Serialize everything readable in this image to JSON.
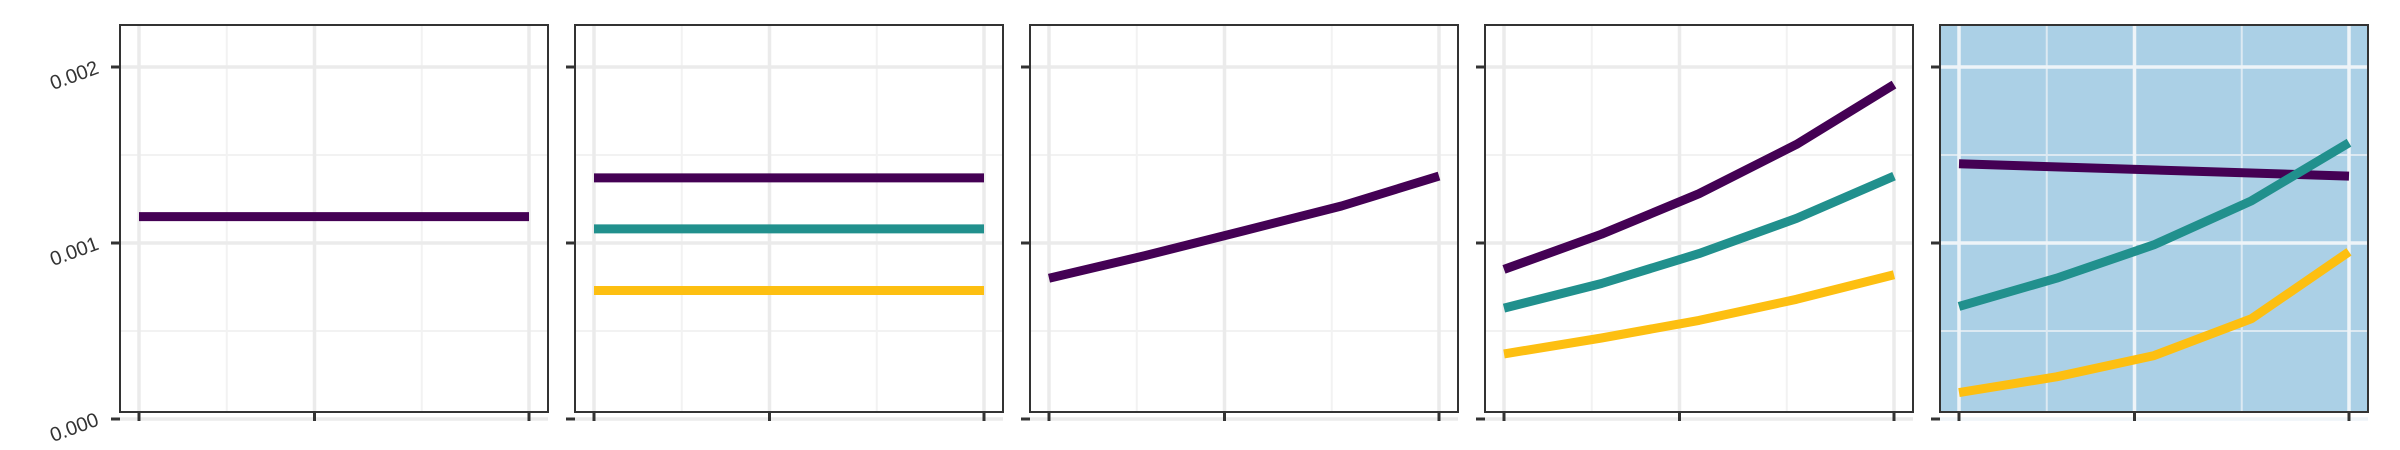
{
  "chart_data": {
    "type": "line",
    "layout": "facets-1x5",
    "xlabel": "",
    "ylabel": "",
    "ylim": [
      0,
      0.002
    ],
    "yticks": [
      "0.000",
      "0.001",
      "0.002"
    ],
    "xlim": [
      0,
      1
    ],
    "xticks": [
      0,
      0.45,
      1
    ],
    "grid": true,
    "legend": "none",
    "series_colors": [
      "#440154",
      "#21908d",
      "#fdbf11"
    ],
    "panels": [
      {
        "background": "#ffffff",
        "series": [
          {
            "color": "#440154",
            "x": [
              0,
              1
            ],
            "y": [
              0.00115,
              0.00115
            ]
          }
        ]
      },
      {
        "background": "#ffffff",
        "series": [
          {
            "color": "#440154",
            "x": [
              0,
              1
            ],
            "y": [
              0.00137,
              0.00137
            ]
          },
          {
            "color": "#21908d",
            "x": [
              0,
              1
            ],
            "y": [
              0.00108,
              0.00108
            ]
          },
          {
            "color": "#fdbf11",
            "x": [
              0,
              1
            ],
            "y": [
              0.00073,
              0.00073
            ]
          }
        ]
      },
      {
        "background": "#ffffff",
        "series": [
          {
            "color": "#440154",
            "x": [
              0,
              0.25,
              0.5,
              0.75,
              1
            ],
            "y": [
              0.0008,
              0.00093,
              0.00107,
              0.00121,
              0.00138
            ]
          }
        ]
      },
      {
        "background": "#ffffff",
        "series": [
          {
            "color": "#440154",
            "x": [
              0,
              0.25,
              0.5,
              0.75,
              1
            ],
            "y": [
              0.00085,
              0.00105,
              0.00128,
              0.00156,
              0.0019
            ]
          },
          {
            "color": "#21908d",
            "x": [
              0,
              0.25,
              0.5,
              0.75,
              1
            ],
            "y": [
              0.00063,
              0.00077,
              0.00094,
              0.00114,
              0.00138
            ]
          },
          {
            "color": "#fdbf11",
            "x": [
              0,
              0.25,
              0.5,
              0.75,
              1
            ],
            "y": [
              0.00037,
              0.00046,
              0.00056,
              0.00068,
              0.00082
            ]
          }
        ]
      },
      {
        "background": "#abd0e6",
        "series": [
          {
            "color": "#440154",
            "x": [
              0,
              1
            ],
            "y": [
              0.00145,
              0.00138
            ]
          },
          {
            "color": "#21908d",
            "x": [
              0,
              0.25,
              0.5,
              0.75,
              1
            ],
            "y": [
              0.00064,
              0.0008,
              0.00099,
              0.00124,
              0.00157
            ]
          },
          {
            "color": "#fdbf11",
            "x": [
              0,
              0.25,
              0.5,
              0.75,
              1
            ],
            "y": [
              0.00015,
              0.00024,
              0.00036,
              0.00057,
              0.00095
            ]
          }
        ]
      }
    ]
  }
}
